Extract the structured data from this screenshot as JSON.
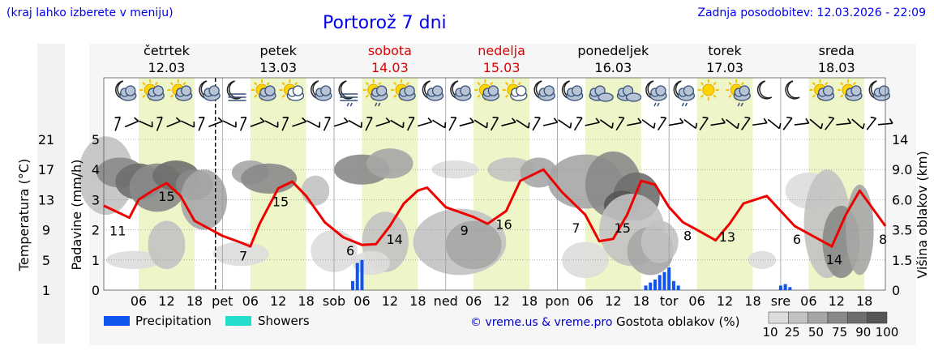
{
  "header": {
    "note": "(kraj lahko izberete v meniju)",
    "title": "Portorož 7 dni",
    "updated": "Zadnja posodobitev: 12.03.2026 - 22:09"
  },
  "days": [
    {
      "name": "četrtek",
      "date": "12.03",
      "weekend": false,
      "axis_label": ""
    },
    {
      "name": "petek",
      "date": "13.03",
      "weekend": false,
      "axis_label": "pet"
    },
    {
      "name": "sobota",
      "date": "14.03",
      "weekend": true,
      "axis_label": "sob"
    },
    {
      "name": "nedelja",
      "date": "15.03",
      "weekend": true,
      "axis_label": "ned"
    },
    {
      "name": "ponedeljek",
      "date": "16.03",
      "weekend": false,
      "axis_label": "pon"
    },
    {
      "name": "torek",
      "date": "17.03",
      "weekend": false,
      "axis_label": "tor"
    },
    {
      "name": "sreda",
      "date": "18.03",
      "weekend": false,
      "axis_label": "sre"
    }
  ],
  "hour_ticks": [
    "06",
    "12",
    "18"
  ],
  "colors": {
    "temperature": "#ee0000",
    "precipitation": "#1155ee",
    "showers": "#22ddcc",
    "daylight": "#eef5c8",
    "night": "#ffffff",
    "title": "#0000ee"
  },
  "legend": {
    "precipitation": "Precipitation",
    "showers": "Showers",
    "credit": "© vreme.us & vreme.pro",
    "cloud_density_title": "Gostota oblakov (%)",
    "cloud_density_levels": [
      "10",
      "25",
      "50",
      "75",
      "90",
      "100"
    ],
    "cloud_density_colors": [
      "#dddddd",
      "#c2c2c2",
      "#a6a6a6",
      "#898989",
      "#6e6e6e",
      "#555555"
    ]
  },
  "icons_row": [
    "moon-cloud",
    "sun-cloud",
    "sun-cloud",
    "moon-cloud",
    "moon-fog",
    "sun-cloud",
    "sun-cloud-white",
    "moon-cloud",
    "moon-fog-rain",
    "sun-cloud-rain",
    "sun-cloud",
    "moon-cloud",
    "moon-cloud",
    "sun-cloud",
    "sun-cloud-white",
    "moon-cloud",
    "moon-cloud",
    "cloudy",
    "cloudy",
    "moon-cloud-rain",
    "moon-cloud-rain",
    "sun",
    "sun-cloud-rain",
    "moon",
    "moon",
    "sun-cloud",
    "sun-cloud",
    "moon-cloud"
  ],
  "chart_data": {
    "type": "line",
    "title": "Portorož 7 dni",
    "x_unit": "hours from Thu 12.03 00:00",
    "x_range": [
      -1.5,
      166.5
    ],
    "axes": {
      "left_outer": {
        "label": "Temperatura (°C)",
        "ticks": [
          1,
          5,
          9,
          13,
          17,
          21
        ]
      },
      "left_inner": {
        "label": "Padavine (mm/h)",
        "ticks": [
          0,
          1,
          2,
          3,
          4,
          5
        ],
        "range": [
          0,
          5
        ]
      },
      "right": {
        "label": "Višina oblakov (km)",
        "ticks": [
          "0",
          "1.5",
          "3.5",
          "6.0",
          "9.0",
          "14"
        ]
      }
    },
    "temperature": {
      "name": "Temperatura",
      "x": [
        -1.5,
        4,
        6,
        9,
        12,
        15,
        18,
        21,
        24,
        28,
        30,
        32,
        36,
        39,
        42,
        46,
        50,
        54,
        57,
        60,
        63,
        66,
        68,
        72,
        78,
        81,
        85,
        88,
        93,
        97,
        102,
        105,
        108,
        111,
        114,
        117,
        120,
        123,
        126,
        130,
        133,
        136,
        141,
        144,
        147,
        150,
        155,
        158,
        161,
        166.5
      ],
      "y": [
        12.2,
        10.6,
        13,
        14.2,
        15.2,
        13.5,
        10.2,
        9.2,
        8.2,
        7.3,
        6.8,
        9.8,
        14.5,
        15.4,
        13.5,
        10,
        8,
        7,
        7.1,
        9.5,
        12.5,
        14.2,
        14.6,
        12,
        10.7,
        9.8,
        11.5,
        15.5,
        17,
        14,
        11,
        7.5,
        7.8,
        11,
        15.5,
        15,
        12,
        10,
        9,
        7.6,
        9.8,
        12.5,
        13.5,
        11.5,
        9.5,
        8.5,
        6.8,
        11,
        14.2,
        9.5
      ],
      "labels": [
        {
          "x": 1.5,
          "value": "11"
        },
        {
          "x": 12,
          "value": "15"
        },
        {
          "x": 28.5,
          "value": "7"
        },
        {
          "x": 36.5,
          "value": "15"
        },
        {
          "x": 51.5,
          "value": "6"
        },
        {
          "x": 61,
          "value": "14"
        },
        {
          "x": 76,
          "value": "9"
        },
        {
          "x": 84.5,
          "value": "16"
        },
        {
          "x": 100,
          "value": "7"
        },
        {
          "x": 110,
          "value": "15"
        },
        {
          "x": 124,
          "value": "8"
        },
        {
          "x": 132.5,
          "value": "13"
        },
        {
          "x": 147.5,
          "value": "6"
        },
        {
          "x": 155.5,
          "value": "14"
        },
        {
          "x": 166,
          "value": "8"
        }
      ]
    },
    "precipitation": {
      "name": "Precipitation",
      "x": [
        52,
        53,
        54,
        115,
        116,
        117,
        118,
        119,
        120,
        121,
        122,
        144,
        145,
        146
      ],
      "y": [
        0.3,
        0.9,
        1.0,
        0.15,
        0.25,
        0.35,
        0.5,
        0.6,
        0.75,
        0.3,
        0.15,
        0.15,
        0.2,
        0.1
      ]
    },
    "showers": {
      "name": "Showers",
      "x": [],
      "y": []
    }
  }
}
